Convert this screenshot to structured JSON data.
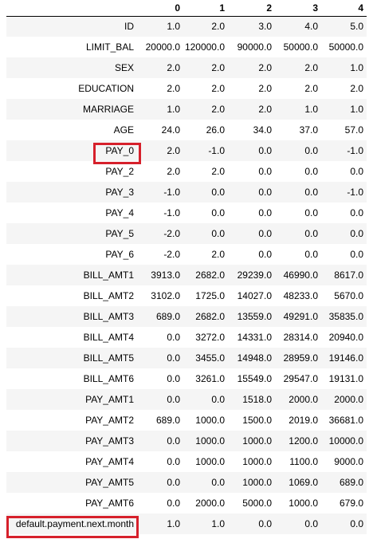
{
  "table": {
    "columns": [
      "",
      "0",
      "1",
      "2",
      "3",
      "4"
    ],
    "rows": [
      {
        "label": "ID",
        "values": [
          "1.0",
          "2.0",
          "3.0",
          "4.0",
          "5.0"
        ]
      },
      {
        "label": "LIMIT_BAL",
        "values": [
          "20000.0",
          "120000.0",
          "90000.0",
          "50000.0",
          "50000.0"
        ]
      },
      {
        "label": "SEX",
        "values": [
          "2.0",
          "2.0",
          "2.0",
          "2.0",
          "1.0"
        ]
      },
      {
        "label": "EDUCATION",
        "values": [
          "2.0",
          "2.0",
          "2.0",
          "2.0",
          "2.0"
        ]
      },
      {
        "label": "MARRIAGE",
        "values": [
          "1.0",
          "2.0",
          "2.0",
          "1.0",
          "1.0"
        ]
      },
      {
        "label": "AGE",
        "values": [
          "24.0",
          "26.0",
          "34.0",
          "37.0",
          "57.0"
        ]
      },
      {
        "label": "PAY_0",
        "values": [
          "2.0",
          "-1.0",
          "0.0",
          "0.0",
          "-1.0"
        ],
        "highlighted": true
      },
      {
        "label": "PAY_2",
        "values": [
          "2.0",
          "2.0",
          "0.0",
          "0.0",
          "0.0"
        ]
      },
      {
        "label": "PAY_3",
        "values": [
          "-1.0",
          "0.0",
          "0.0",
          "0.0",
          "-1.0"
        ]
      },
      {
        "label": "PAY_4",
        "values": [
          "-1.0",
          "0.0",
          "0.0",
          "0.0",
          "0.0"
        ]
      },
      {
        "label": "PAY_5",
        "values": [
          "-2.0",
          "0.0",
          "0.0",
          "0.0",
          "0.0"
        ]
      },
      {
        "label": "PAY_6",
        "values": [
          "-2.0",
          "2.0",
          "0.0",
          "0.0",
          "0.0"
        ]
      },
      {
        "label": "BILL_AMT1",
        "values": [
          "3913.0",
          "2682.0",
          "29239.0",
          "46990.0",
          "8617.0"
        ]
      },
      {
        "label": "BILL_AMT2",
        "values": [
          "3102.0",
          "1725.0",
          "14027.0",
          "48233.0",
          "5670.0"
        ]
      },
      {
        "label": "BILL_AMT3",
        "values": [
          "689.0",
          "2682.0",
          "13559.0",
          "49291.0",
          "35835.0"
        ]
      },
      {
        "label": "BILL_AMT4",
        "values": [
          "0.0",
          "3272.0",
          "14331.0",
          "28314.0",
          "20940.0"
        ]
      },
      {
        "label": "BILL_AMT5",
        "values": [
          "0.0",
          "3455.0",
          "14948.0",
          "28959.0",
          "19146.0"
        ]
      },
      {
        "label": "BILL_AMT6",
        "values": [
          "0.0",
          "3261.0",
          "15549.0",
          "29547.0",
          "19131.0"
        ]
      },
      {
        "label": "PAY_AMT1",
        "values": [
          "0.0",
          "0.0",
          "1518.0",
          "2000.0",
          "2000.0"
        ]
      },
      {
        "label": "PAY_AMT2",
        "values": [
          "689.0",
          "1000.0",
          "1500.0",
          "2019.0",
          "36681.0"
        ]
      },
      {
        "label": "PAY_AMT3",
        "values": [
          "0.0",
          "1000.0",
          "1000.0",
          "1200.0",
          "10000.0"
        ]
      },
      {
        "label": "PAY_AMT4",
        "values": [
          "0.0",
          "1000.0",
          "1000.0",
          "1100.0",
          "9000.0"
        ]
      },
      {
        "label": "PAY_AMT5",
        "values": [
          "0.0",
          "0.0",
          "1000.0",
          "1069.0",
          "689.0"
        ]
      },
      {
        "label": "PAY_AMT6",
        "values": [
          "0.0",
          "2000.0",
          "5000.0",
          "1000.0",
          "679.0"
        ]
      },
      {
        "label": "default.payment.next.month",
        "values": [
          "1.0",
          "1.0",
          "0.0",
          "0.0",
          "0.0"
        ],
        "highlighted": true
      }
    ]
  },
  "colors": {
    "highlight": "#d6202b",
    "row_stripe": "#f5f5f5"
  }
}
